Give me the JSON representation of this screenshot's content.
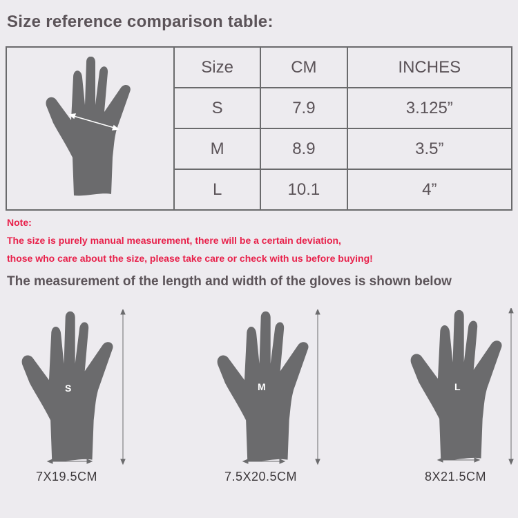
{
  "title": "Size reference comparison table:",
  "table": {
    "headers": [
      "Size",
      "CM",
      "INCHES"
    ],
    "rows": [
      [
        "S",
        "7.9",
        "3.125”"
      ],
      [
        "M",
        "8.9",
        "3.5”"
      ],
      [
        "L",
        "10.1",
        "4”"
      ]
    ]
  },
  "note": {
    "label": "Note:",
    "line1": "The size is purely manual measurement, there will be a certain deviation,",
    "line2": "those who care about the size, please take care or check with us before buying!"
  },
  "subtitle": "The measurement of the length and width of the gloves is shown below",
  "gloves": [
    {
      "size": "S",
      "dimensions": "7X19.5CM"
    },
    {
      "size": "M",
      "dimensions": "7.5X20.5CM"
    },
    {
      "size": "L",
      "dimensions": "8X21.5CM"
    }
  ],
  "colors": {
    "hand": "#6b6b6d",
    "note": "#e8204a",
    "text": "#5b5358",
    "background": "#edebef"
  },
  "icons": {
    "hand": "hand-silhouette-icon",
    "arrow": "double-arrow-icon"
  }
}
